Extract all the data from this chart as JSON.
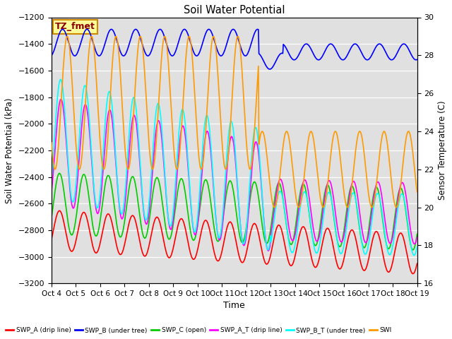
{
  "title": "Soil Water Potential",
  "ylabel_left": "Soil Water Potential (kPa)",
  "ylabel_right": "Sensor Temperature (C)",
  "xlabel": "Time",
  "ylim_left": [
    -3200,
    -1200
  ],
  "ylim_right": [
    16,
    30
  ],
  "yticks_left": [
    -3200,
    -3000,
    -2800,
    -2600,
    -2400,
    -2200,
    -2000,
    -1800,
    -1600,
    -1400,
    -1200
  ],
  "yticks_right": [
    16,
    18,
    20,
    22,
    24,
    26,
    28,
    30
  ],
  "xtick_labels": [
    "Oct 4",
    "Oct 5",
    "Oct 6",
    "Oct 7",
    "Oct 8",
    "Oct 9",
    "Oct 10",
    "Oct 11",
    "Oct 12",
    "Oct 13",
    "Oct 14",
    "Oct 15",
    "Oct 16",
    "Oct 17",
    "Oct 18",
    "Oct 19"
  ],
  "bg_color": "#e0e0e0",
  "fig_bg": "#ffffff",
  "annotation_text": "TZ_fmet",
  "annotation_box_color": "#ffff99",
  "annotation_border_color": "#cc8800",
  "series_colors": {
    "SWP_A": "#ff0000",
    "SWP_B": "#0000ff",
    "SWP_C": "#00cc00",
    "SWP_A_T": "#ff00ff",
    "SWP_B_T": "#00ffff",
    "SWP_C_T": "#ff9900"
  },
  "legend_labels": [
    "SWP_A (drip line)",
    "SWP_B (under tree)",
    "SWP_C (open)",
    "SWP_A_T (drip line)",
    "SWP_B_T (under tree)",
    "SWI"
  ]
}
